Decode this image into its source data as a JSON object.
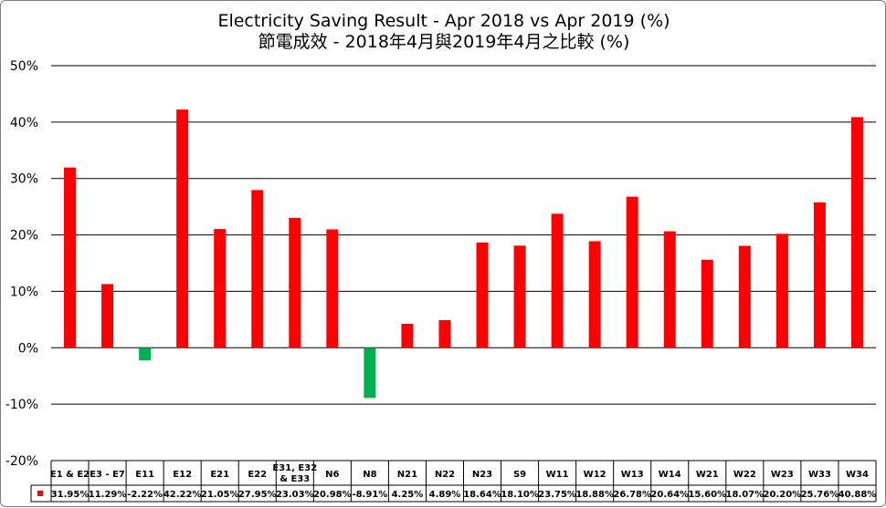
{
  "chart_data": {
    "type": "bar",
    "title": "Electricity Saving Result - Apr 2018 vs Apr 2019 (%)",
    "subtitle": "節電成效 - 2018年4月與2019年4月之比較 (%)",
    "categories": [
      "E1 & E2",
      "E3 - E7",
      "E11",
      "E12",
      "E21",
      "E22",
      "E31, E32 & E33",
      "N6",
      "N8",
      "N21",
      "N22",
      "N23",
      "S9",
      "W11",
      "W12",
      "W13",
      "W14",
      "W21",
      "W22",
      "W23",
      "W33",
      "W34"
    ],
    "series": [
      {
        "values": [
          31.95,
          11.29,
          -2.22,
          42.22,
          21.05,
          27.95,
          23.03,
          20.98,
          -8.91,
          4.25,
          4.89,
          18.64,
          18.1,
          23.75,
          18.88,
          26.78,
          20.64,
          15.6,
          18.07,
          20.2,
          25.76,
          40.88
        ],
        "labels": [
          "31.95%",
          "11.29%",
          "-2.22%",
          "42.22%",
          "21.05%",
          "27.95%",
          "23.03%",
          "20.98%",
          "-8.91%",
          "4.25%",
          "4.89%",
          "18.64%",
          "18.10%",
          "23.75%",
          "18.88%",
          "26.78%",
          "20.64%",
          "15.60%",
          "18.07%",
          "20.20%",
          "25.76%",
          "40.88%"
        ]
      }
    ],
    "ylim": [
      -20,
      50
    ],
    "yticks": [
      "50%",
      "40%",
      "30%",
      "20%",
      "10%",
      "0%",
      "-10%",
      "-20%"
    ],
    "ytick_values": [
      50,
      40,
      30,
      20,
      10,
      0,
      -10,
      -20
    ],
    "grid": true,
    "data_table": true,
    "colors": {
      "positive": "#ff0000",
      "negative": "#00b050",
      "grid": "#000000",
      "legend_key": "#ff0000"
    }
  }
}
